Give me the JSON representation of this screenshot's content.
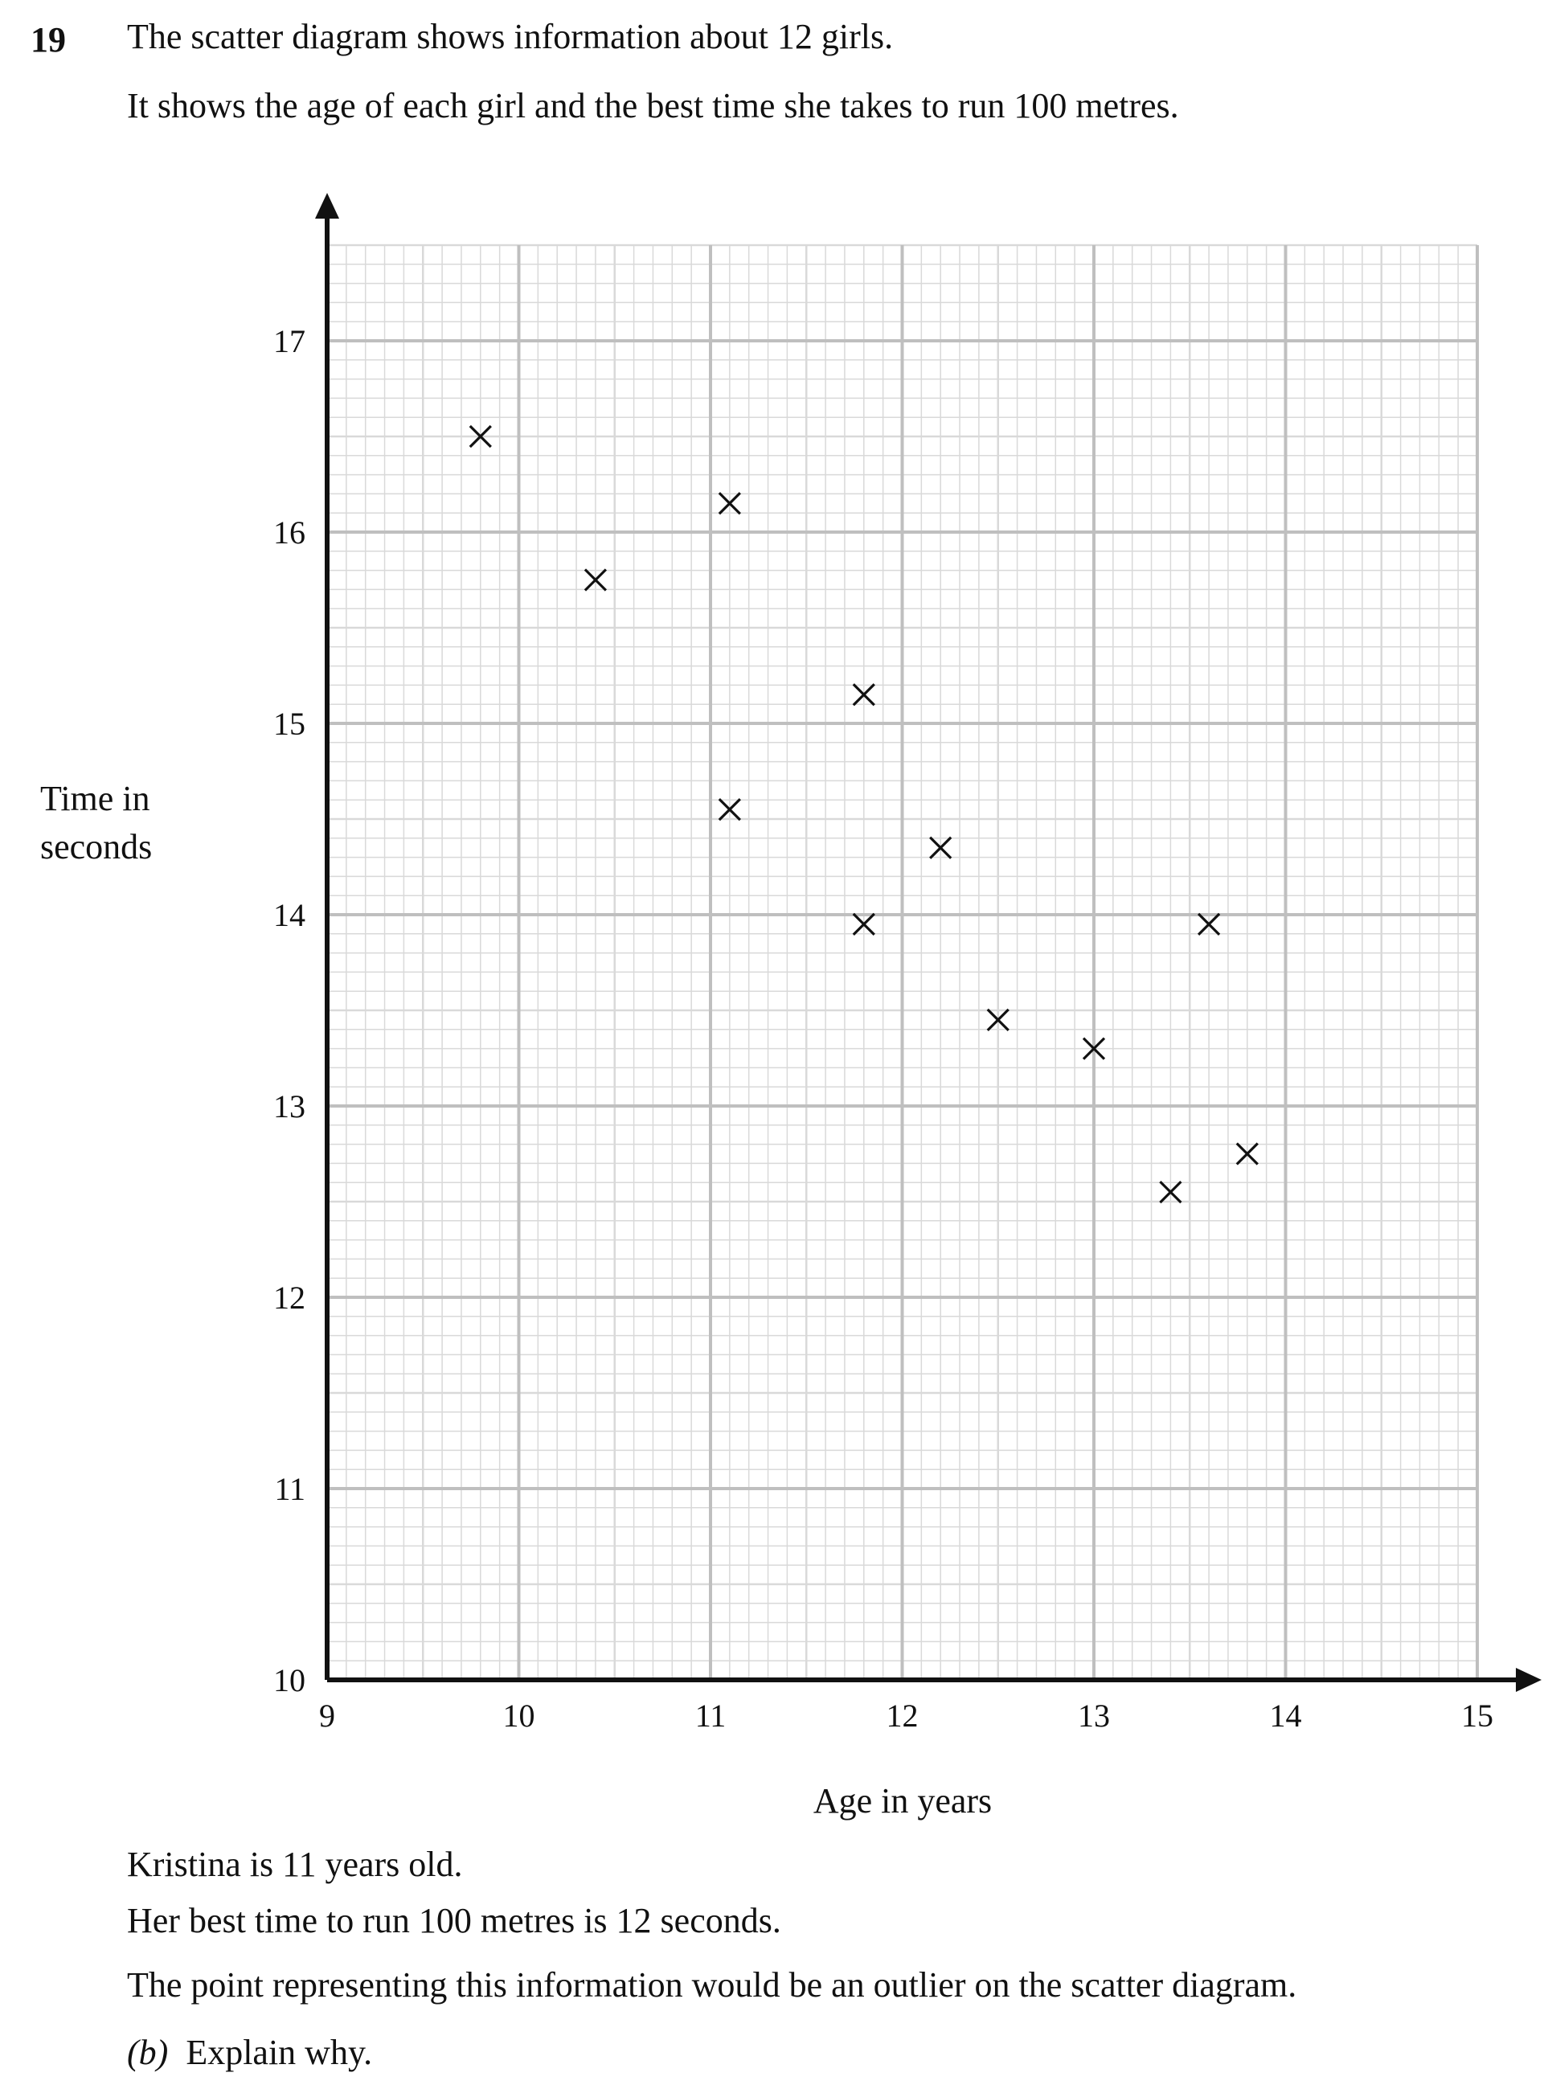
{
  "question": {
    "number": "19",
    "intro_line_1": "The scatter diagram shows information about 12 girls.",
    "intro_line_2": "It shows the age of each girl and the best time she takes to run 100 metres."
  },
  "followup": {
    "line_1": "Kristina is 11 years old.",
    "line_2": "Her best time to run 100 metres is 12 seconds.",
    "line_3": "The point representing this information would be an outlier on the scatter diagram.",
    "part_label": "(b)",
    "part_text": "Explain why."
  },
  "chart_data": {
    "type": "scatter",
    "xlabel": "Age in years",
    "ylabel_lines": [
      "Time in",
      "seconds"
    ],
    "xlim": [
      9,
      15
    ],
    "ylim": [
      10,
      17.5
    ],
    "x_ticks": [
      9,
      10,
      11,
      12,
      13,
      14,
      15
    ],
    "y_ticks": [
      10,
      11,
      12,
      13,
      14,
      15,
      16,
      17
    ],
    "grid": true,
    "marker": "cross",
    "points": [
      {
        "x": 9.8,
        "y": 16.5
      },
      {
        "x": 10.4,
        "y": 15.75
      },
      {
        "x": 11.1,
        "y": 16.15
      },
      {
        "x": 11.1,
        "y": 14.55
      },
      {
        "x": 11.8,
        "y": 15.15
      },
      {
        "x": 11.8,
        "y": 13.95
      },
      {
        "x": 12.2,
        "y": 14.35
      },
      {
        "x": 12.5,
        "y": 13.45
      },
      {
        "x": 13.0,
        "y": 13.3
      },
      {
        "x": 13.4,
        "y": 12.55
      },
      {
        "x": 13.6,
        "y": 13.95
      },
      {
        "x": 13.8,
        "y": 12.75
      }
    ],
    "colors": {
      "grid_major": "#bfbfbf",
      "grid_minor": "#d9d9d9",
      "axis": "#111111",
      "marker": "#111111"
    }
  }
}
